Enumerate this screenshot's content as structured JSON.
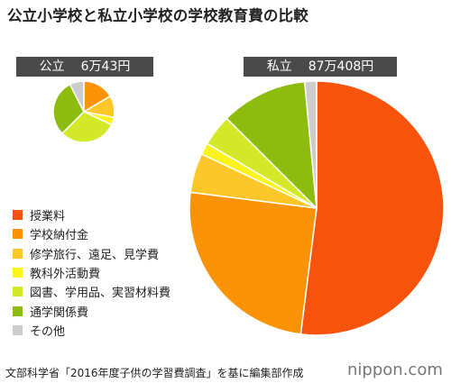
{
  "title": "公立小学校と私立小学校の学校教育費の比較",
  "chart_data": [
    {
      "type": "pie",
      "label": "公立",
      "total": "6万43円",
      "unit": "%",
      "slices": [
        {
          "name": "授業料",
          "value": 0
        },
        {
          "name": "学校納付金",
          "value": 16.5
        },
        {
          "name": "修学旅行、遠足、見学費",
          "value": 11.5
        },
        {
          "name": "教科外活動費",
          "value": 4.0
        },
        {
          "name": "図書、学用品、実習材料費",
          "value": 30.5
        },
        {
          "name": "通学関係費",
          "value": 30.0
        },
        {
          "name": "その他",
          "value": 7.5
        }
      ]
    },
    {
      "type": "pie",
      "label": "私立",
      "total": "87万408円",
      "unit": "%",
      "slices": [
        {
          "name": "授業料",
          "value": 52.0
        },
        {
          "name": "学校納付金",
          "value": 25.0
        },
        {
          "name": "修学旅行、遠足、見学費",
          "value": 5.0
        },
        {
          "name": "教科外活動費",
          "value": 1.5
        },
        {
          "name": "図書、学用品、実習材料費",
          "value": 4.0
        },
        {
          "name": "通学関係費",
          "value": 11.0
        },
        {
          "name": "その他",
          "value": 1.5
        }
      ]
    }
  ],
  "legend": [
    {
      "label": "授業料",
      "color": "#f8530d"
    },
    {
      "label": "学校納付金",
      "color": "#fb9304"
    },
    {
      "label": "修学旅行、遠足、見学費",
      "color": "#fdc72a"
    },
    {
      "label": "教科外活動費",
      "color": "#fbf31a"
    },
    {
      "label": "図書、学用品、実習材料費",
      "color": "#d4e82a"
    },
    {
      "label": "通学関係費",
      "color": "#8cbc0e"
    },
    {
      "label": "その他",
      "color": "#cccccc"
    }
  ],
  "source": "文部科学省「2016年度子供の学習費調査」を基に編集部作成",
  "logo": {
    "name": "nippon",
    "dot": ".",
    "domain": "com"
  }
}
